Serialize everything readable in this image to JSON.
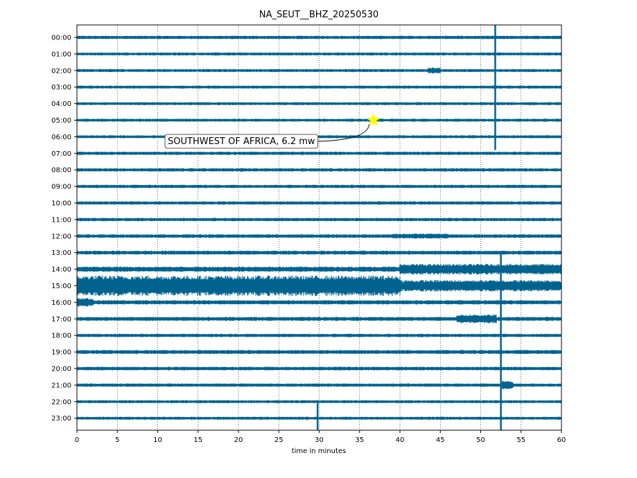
{
  "chart_data": {
    "type": "line",
    "title": "NA_SEUT__BHZ_20250530",
    "xlabel": "time in minutes",
    "ylabel": "",
    "xlim": [
      0,
      60
    ],
    "x_ticks": [
      0,
      5,
      10,
      15,
      20,
      25,
      30,
      35,
      40,
      45,
      50,
      55,
      60
    ],
    "grid": "vertical dotted",
    "trace_color": "#00638f",
    "rows": [
      "00:00",
      "01:00",
      "02:00",
      "03:00",
      "04:00",
      "05:00",
      "06:00",
      "07:00",
      "08:00",
      "09:00",
      "10:00",
      "11:00",
      "12:00",
      "13:00",
      "14:00",
      "15:00",
      "16:00",
      "17:00",
      "18:00",
      "19:00",
      "20:00",
      "21:00",
      "22:00",
      "23:00"
    ],
    "row_noise_level": [
      1.0,
      0.9,
      0.9,
      0.9,
      0.9,
      0.9,
      0.9,
      1.0,
      1.0,
      1.0,
      1.0,
      1.0,
      1.1,
      1.2,
      1.6,
      2.2,
      1.3,
      1.2,
      1.0,
      1.2,
      1.1,
      1.0,
      0.9,
      0.9
    ],
    "bursts": [
      {
        "row": "14:00",
        "start_min": 40,
        "end_min": 60,
        "amplitude": 2.0
      },
      {
        "row": "15:00",
        "start_min": 0,
        "end_min": 40,
        "amplitude": 2.8
      },
      {
        "row": "15:00",
        "start_min": 40,
        "end_min": 60,
        "amplitude": 1.6
      },
      {
        "row": "17:00",
        "start_min": 47,
        "end_min": 52,
        "amplitude": 2.2
      },
      {
        "row": "12:00",
        "start_min": 39,
        "end_min": 46,
        "amplitude": 1.4
      },
      {
        "row": "16:00",
        "start_min": 0,
        "end_min": 2,
        "amplitude": 2.0
      },
      {
        "row": "02:00",
        "start_min": 43.5,
        "end_min": 45,
        "amplitude": 2.0
      },
      {
        "row": "21:00",
        "start_min": 52.5,
        "end_min": 54,
        "amplitude": 2.6
      }
    ],
    "spikes": [
      {
        "start_row": "00:00",
        "end_row": "06:00",
        "minute": 51.8
      },
      {
        "start_row": "14:00",
        "end_row": "23:00",
        "minute": 52.5
      },
      {
        "start_row": "23:00",
        "end_row": "23:00",
        "minute": 29.8
      }
    ],
    "event": {
      "label": "SOUTHWEST OF AFRICA, 6.2 mw",
      "row": "05:00",
      "minute": 36.7,
      "marker_color": "#ffff00"
    }
  }
}
